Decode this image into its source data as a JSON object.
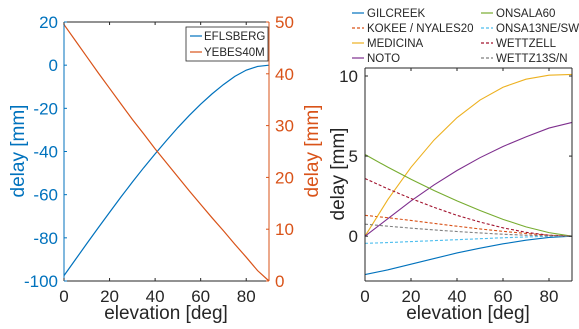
{
  "chart_data": [
    {
      "type": "line",
      "xlabel": "elevation [deg]",
      "ylabel": "delay [mm]",
      "ylabel_right": "delay [mm]",
      "xlim": [
        0,
        90
      ],
      "ylim": [
        -100,
        20
      ],
      "ylim_right": [
        0,
        50
      ],
      "xticks": [
        0,
        20,
        40,
        60,
        80
      ],
      "yticks": [
        -100,
        -80,
        -60,
        -40,
        -20,
        0,
        20
      ],
      "yticks_right": [
        0,
        10,
        20,
        30,
        40,
        50
      ],
      "grid": false,
      "legend_position": "top-right",
      "x": [
        0,
        5,
        10,
        15,
        20,
        25,
        30,
        35,
        40,
        45,
        50,
        55,
        60,
        65,
        70,
        75,
        80,
        85,
        90
      ],
      "series": [
        {
          "name": "EFLSBERG",
          "axis": "left",
          "color": "#0072BD",
          "values": [
            -97.5,
            -90.1,
            -82.7,
            -75.4,
            -68.2,
            -61.1,
            -54.2,
            -47.5,
            -41.1,
            -34.9,
            -28.9,
            -23.3,
            -18.1,
            -13.3,
            -9.0,
            -5.2,
            -2.3,
            -0.6,
            0.0
          ]
        },
        {
          "name": "YEBES40M",
          "axis": "right",
          "color": "#D95319",
          "values": [
            49.5,
            46.4,
            43.3,
            40.2,
            37.2,
            34.2,
            31.2,
            28.4,
            25.5,
            22.8,
            20.1,
            17.4,
            14.8,
            12.2,
            9.7,
            7.1,
            4.6,
            2.0,
            0.0
          ]
        }
      ]
    },
    {
      "type": "line",
      "xlabel": "elevation [deg]",
      "ylabel": "delay [mm]",
      "xlim": [
        0,
        90
      ],
      "ylim": [
        -2.8,
        10.5
      ],
      "xticks": [
        0,
        20,
        40,
        60,
        80
      ],
      "yticks": [
        0,
        5,
        10
      ],
      "grid": false,
      "legend_position": "top",
      "x": [
        0,
        10,
        20,
        30,
        40,
        50,
        60,
        70,
        80,
        90
      ],
      "series": [
        {
          "name": "GILCREEK",
          "color": "#0072BD",
          "style": "solid",
          "values": [
            -2.4,
            -2.1,
            -1.75,
            -1.4,
            -1.05,
            -0.75,
            -0.48,
            -0.25,
            -0.08,
            0.0
          ]
        },
        {
          "name": "KOKEE / NYALES20",
          "color": "#D95319",
          "style": "dashed",
          "values": [
            1.3,
            1.15,
            0.98,
            0.8,
            0.62,
            0.45,
            0.3,
            0.17,
            0.06,
            0.0
          ]
        },
        {
          "name": "MEDICINA",
          "color": "#EDB120",
          "style": "solid",
          "values": [
            0.0,
            2.3,
            4.3,
            6.0,
            7.4,
            8.5,
            9.3,
            9.8,
            10.05,
            10.1
          ]
        },
        {
          "name": "NOTO",
          "color": "#7E2F8E",
          "style": "solid",
          "values": [
            0.0,
            1.1,
            2.2,
            3.2,
            4.1,
            4.9,
            5.6,
            6.2,
            6.75,
            7.1
          ]
        },
        {
          "name": "ONSALA60",
          "color": "#77AC30",
          "style": "solid",
          "values": [
            5.1,
            4.3,
            3.55,
            2.85,
            2.2,
            1.6,
            1.05,
            0.58,
            0.22,
            0.0
          ]
        },
        {
          "name": "ONSA13NE/SW",
          "color": "#4DBEEE",
          "style": "dashed",
          "values": [
            -0.45,
            -0.4,
            -0.34,
            -0.28,
            -0.22,
            -0.16,
            -0.1,
            -0.05,
            -0.01,
            0.0
          ]
        },
        {
          "name": "WETTZELL",
          "color": "#A2142F",
          "style": "dashed",
          "values": [
            3.6,
            2.95,
            2.35,
            1.8,
            1.3,
            0.88,
            0.52,
            0.24,
            0.06,
            0.0
          ]
        },
        {
          "name": "WETTZ13S/N",
          "color": "#7F7F7F",
          "style": "dashed",
          "values": [
            0.75,
            0.62,
            0.5,
            0.39,
            0.29,
            0.2,
            0.12,
            0.06,
            0.02,
            0.0
          ]
        }
      ]
    }
  ]
}
